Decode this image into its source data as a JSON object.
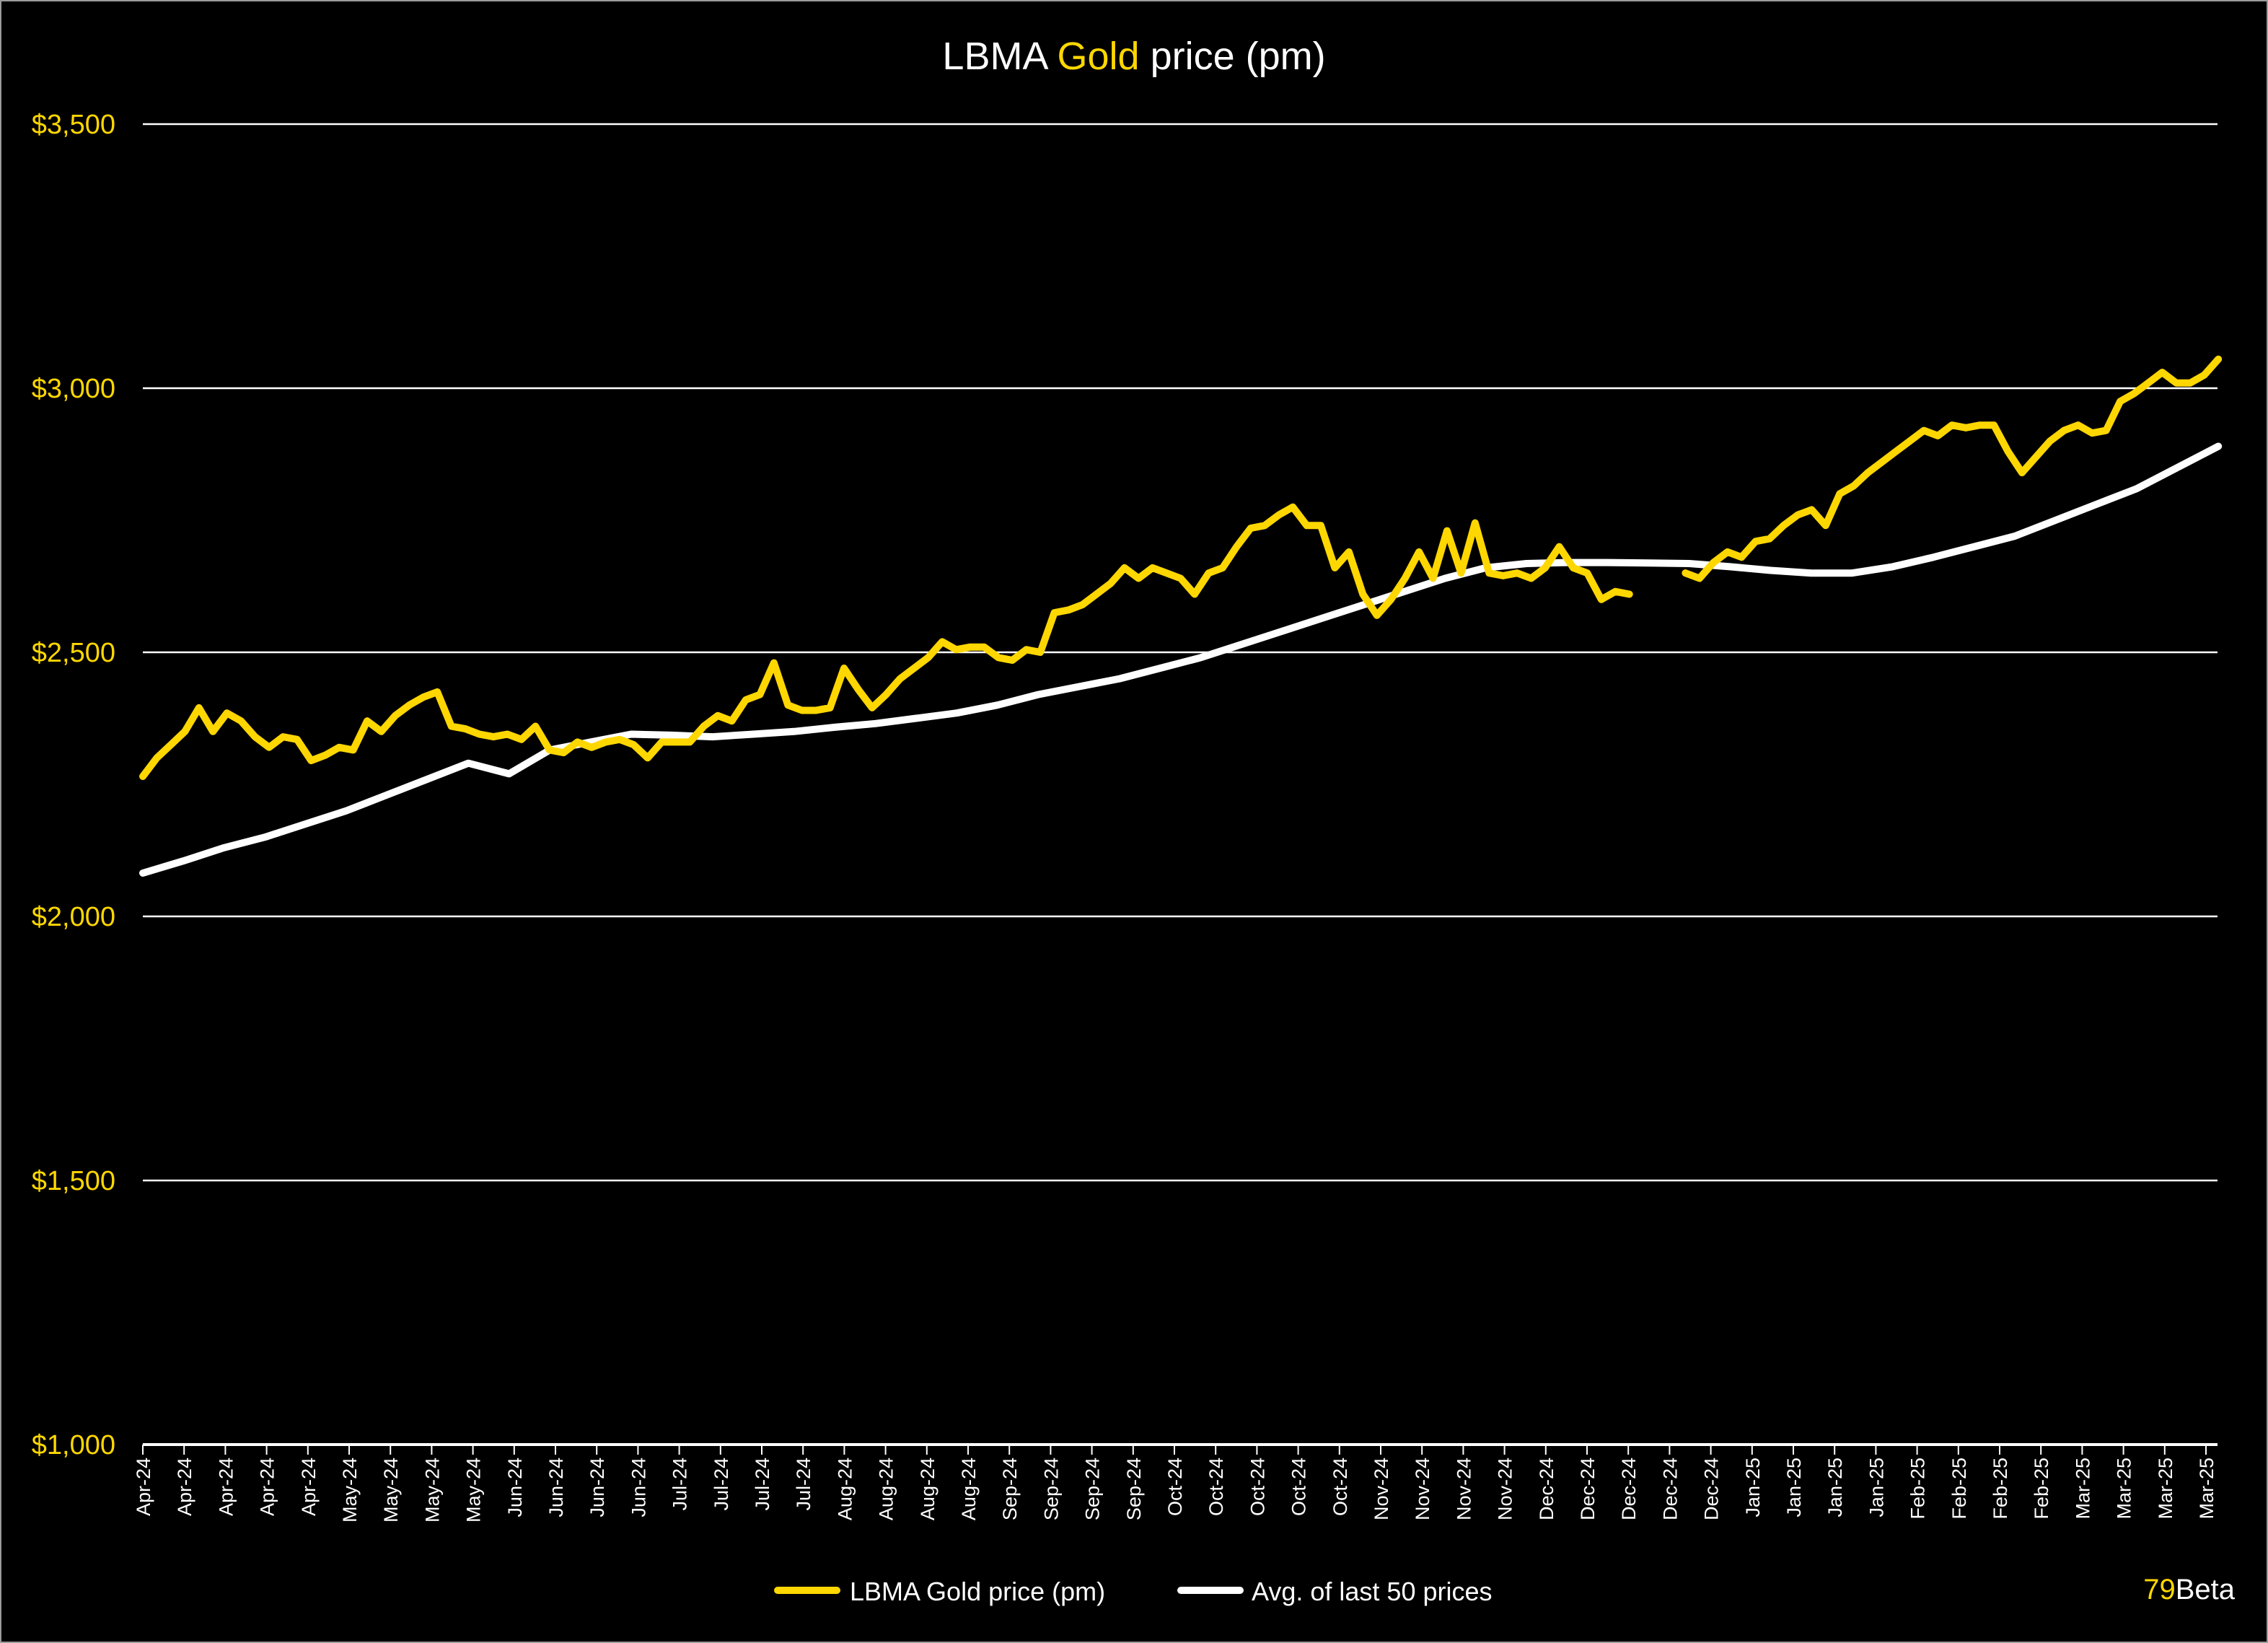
{
  "colors": {
    "gold": "#FFD700",
    "avg": "#FFFFFF",
    "background": "#000000",
    "grid": "#FFFFFF"
  },
  "branding": {
    "prefix": "79",
    "suffix": "Beta"
  },
  "chart_data": {
    "type": "line",
    "title": {
      "before": "LBMA ",
      "highlight": "Gold",
      "after": " price (pm)"
    },
    "xlabel": "",
    "ylabel": "",
    "ylim": [
      1000,
      3500
    ],
    "yticks": [
      1000,
      1500,
      2000,
      2500,
      3000,
      3500
    ],
    "ytick_labels": [
      "$1,000",
      "$1,500",
      "$2,000",
      "$2,500",
      "$3,000",
      "$3,500"
    ],
    "grid": true,
    "legend_position": "bottom-center",
    "x_tick_labels": [
      "Apr-24",
      "Apr-24",
      "Apr-24",
      "Apr-24",
      "Apr-24",
      "May-24",
      "May-24",
      "May-24",
      "May-24",
      "Jun-24",
      "Jun-24",
      "Jun-24",
      "Jun-24",
      "Jul-24",
      "Jul-24",
      "Jul-24",
      "Jul-24",
      "Aug-24",
      "Aug-24",
      "Aug-24",
      "Aug-24",
      "Sep-24",
      "Sep-24",
      "Sep-24",
      "Sep-24",
      "Oct-24",
      "Oct-24",
      "Oct-24",
      "Oct-24",
      "Oct-24",
      "Nov-24",
      "Nov-24",
      "Nov-24",
      "Nov-24",
      "Dec-24",
      "Dec-24",
      "Dec-24",
      "Dec-24",
      "Dec-24",
      "Jan-25",
      "Jan-25",
      "Jan-25",
      "Jan-25",
      "Feb-25",
      "Feb-25",
      "Feb-25",
      "Feb-25",
      "Mar-25",
      "Mar-25",
      "Mar-25",
      "Mar-25"
    ],
    "x_range_ticks": [
      0,
      50.3
    ],
    "series": [
      {
        "name": "LBMA Gold price (pm)",
        "color": "#FFD700",
        "values": [
          2265,
          2300,
          2325,
          2350,
          2395,
          2350,
          2385,
          2370,
          2340,
          2320,
          2340,
          2335,
          2295,
          2305,
          2320,
          2315,
          2370,
          2350,
          2380,
          2400,
          2415,
          2425,
          2360,
          2355,
          2345,
          2340,
          2345,
          2335,
          2360,
          2315,
          2310,
          2330,
          2320,
          2330,
          2335,
          2325,
          2300,
          2330,
          2330,
          2330,
          2360,
          2380,
          2370,
          2410,
          2420,
          2480,
          2400,
          2390,
          2390,
          2395,
          2470,
          2430,
          2395,
          2420,
          2450,
          2470,
          2490,
          2520,
          2505,
          2510,
          2510,
          2490,
          2485,
          2505,
          2500,
          2575,
          2580,
          2590,
          2610,
          2630,
          2660,
          2640,
          2660,
          2650,
          2640,
          2610,
          2650,
          2660,
          2700,
          2735,
          2740,
          2760,
          2775,
          2740,
          2740,
          2660,
          2690,
          2610,
          2570,
          2600,
          2640,
          2690,
          2640,
          2730,
          2650,
          2745,
          2650,
          2645,
          2650,
          2640,
          2660,
          2700,
          2660,
          2650,
          2600,
          2615,
          2610,
          null,
          2605,
          null,
          2650,
          2640,
          2670,
          2690,
          2680,
          2710,
          2715,
          2740,
          2760,
          2770,
          2740,
          2800,
          2815,
          2840,
          2860,
          2880,
          2900,
          2920,
          2910,
          2930,
          2925,
          2930,
          2930,
          2880,
          2840,
          2870,
          2900,
          2920,
          2930,
          2915,
          2920,
          2975,
          2990,
          3010,
          3030,
          3010,
          3010,
          3025,
          3055
        ]
      },
      {
        "name": "Avg. of last 50 prices",
        "color": "#FFFFFF",
        "values": [
          2082,
          2105,
          2130,
          2150,
          2175,
          2200,
          2230,
          2260,
          2290,
          2270,
          2315,
          2330,
          2345,
          2343,
          2340,
          2345,
          2350,
          2358,
          2365,
          2375,
          2385,
          2400,
          2420,
          2435,
          2450,
          2470,
          2490,
          2515,
          2540,
          2565,
          2590,
          2615,
          2640,
          2660,
          2668,
          2670,
          2670,
          2669,
          2668,
          2662,
          2655,
          2650,
          2650,
          2662,
          2680,
          2700,
          2720,
          2750,
          2780,
          2810,
          2850,
          2890
        ]
      }
    ]
  }
}
